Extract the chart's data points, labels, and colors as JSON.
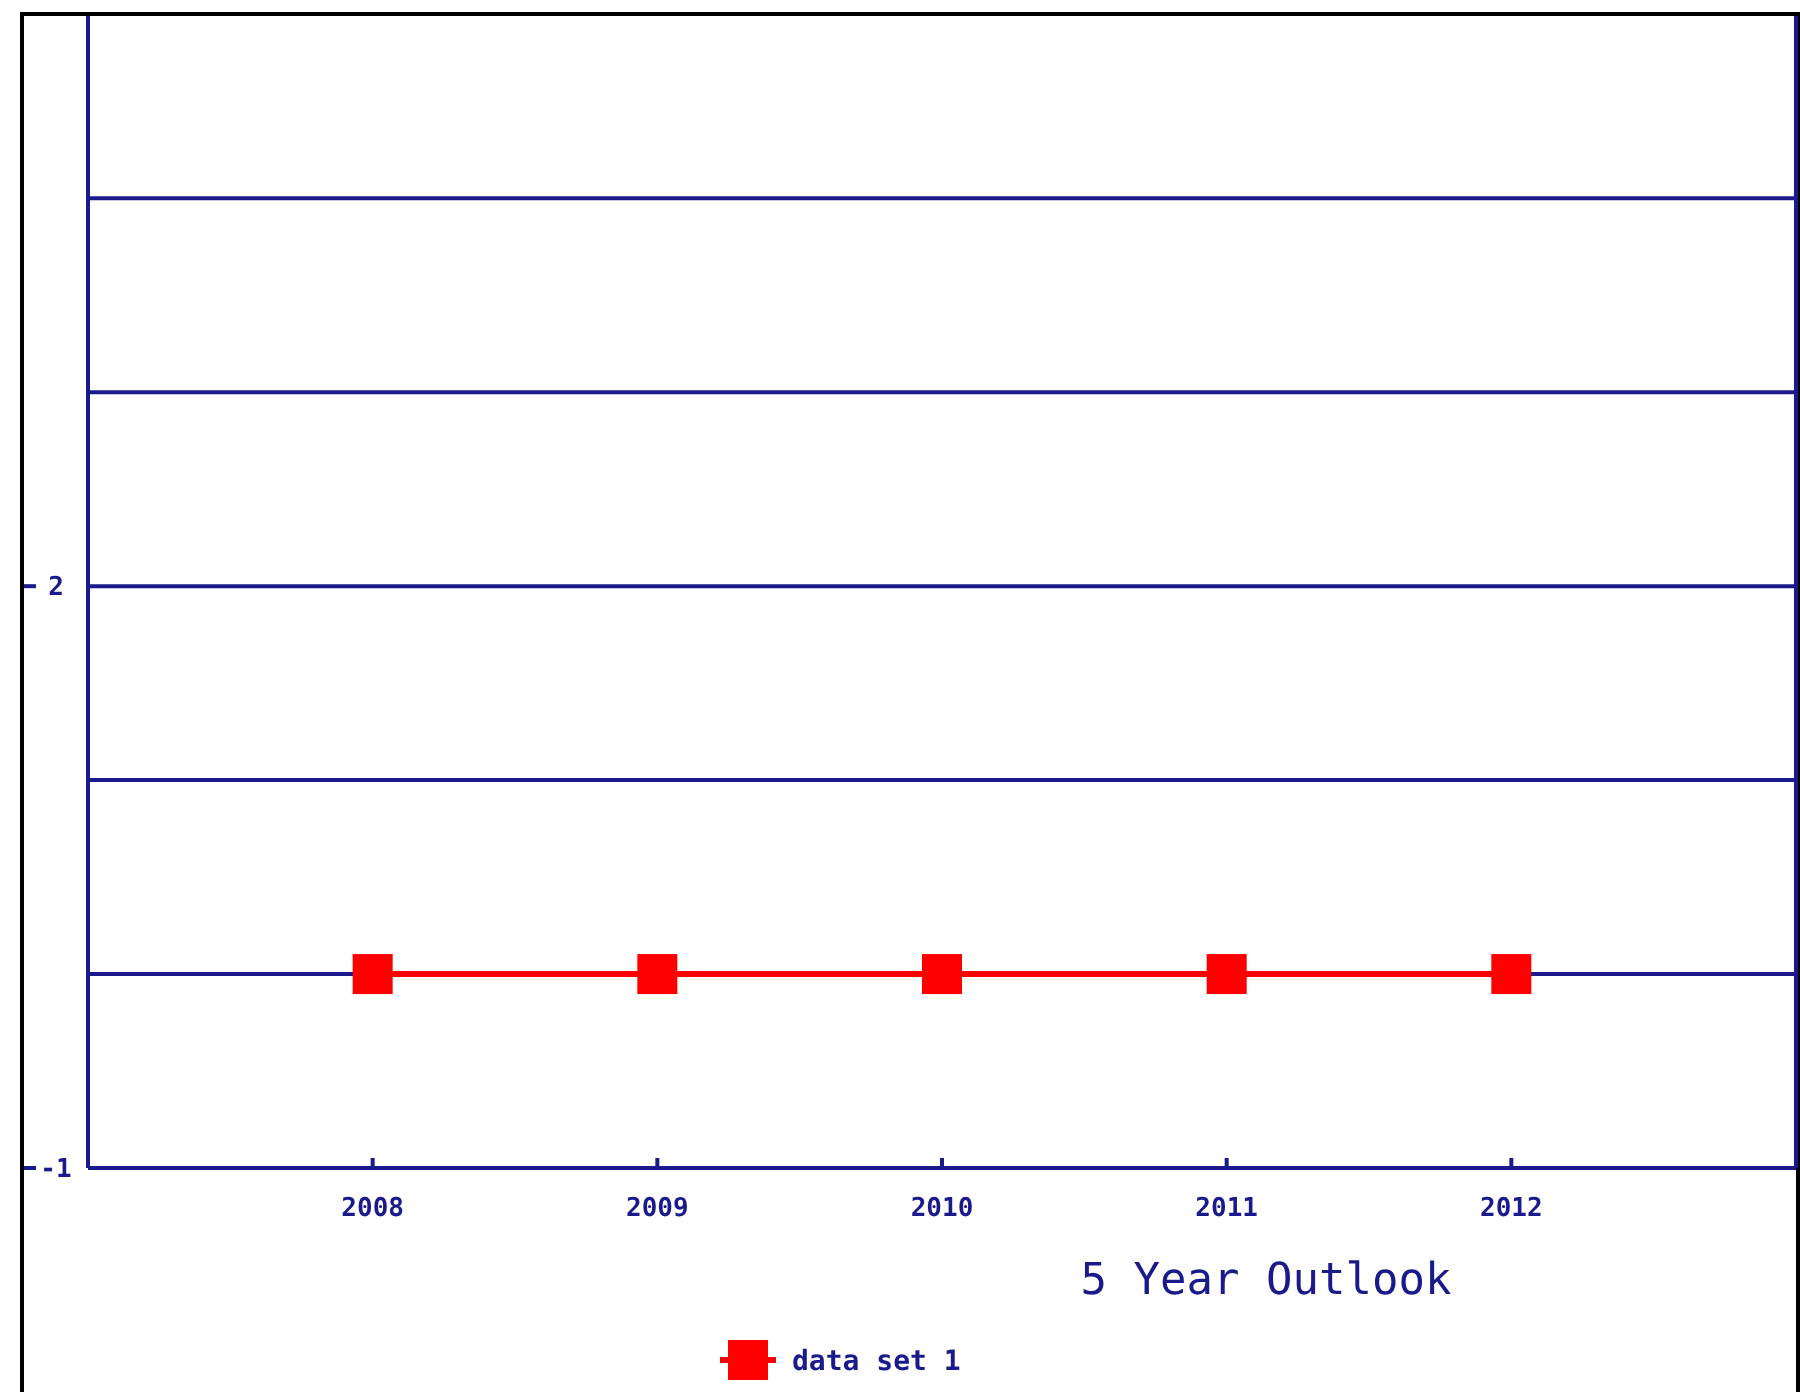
{
  "chart_data": {
    "type": "line",
    "xlabel": "5 Year Outlook",
    "x": [
      2008,
      2009,
      2010,
      2011,
      2012
    ],
    "series": [
      {
        "name": "data set 1",
        "color": "#ff0000",
        "values": [
          0,
          0,
          0,
          0,
          0
        ]
      }
    ],
    "xlim": [
      2007,
      2013
    ],
    "xticks": [
      2008,
      2009,
      2010,
      2011,
      2012
    ],
    "ylim": [
      -1,
      4.94
    ],
    "yticks": [
      -1,
      {
        "value": 0,
        "label": null
      },
      {
        "value": 1,
        "label": null
      },
      2,
      {
        "value": 3,
        "label": null
      },
      {
        "value": 4,
        "label": null
      }
    ],
    "grid": "y",
    "legend": "bottom",
    "marker": "square",
    "line_style": "solid"
  }
}
